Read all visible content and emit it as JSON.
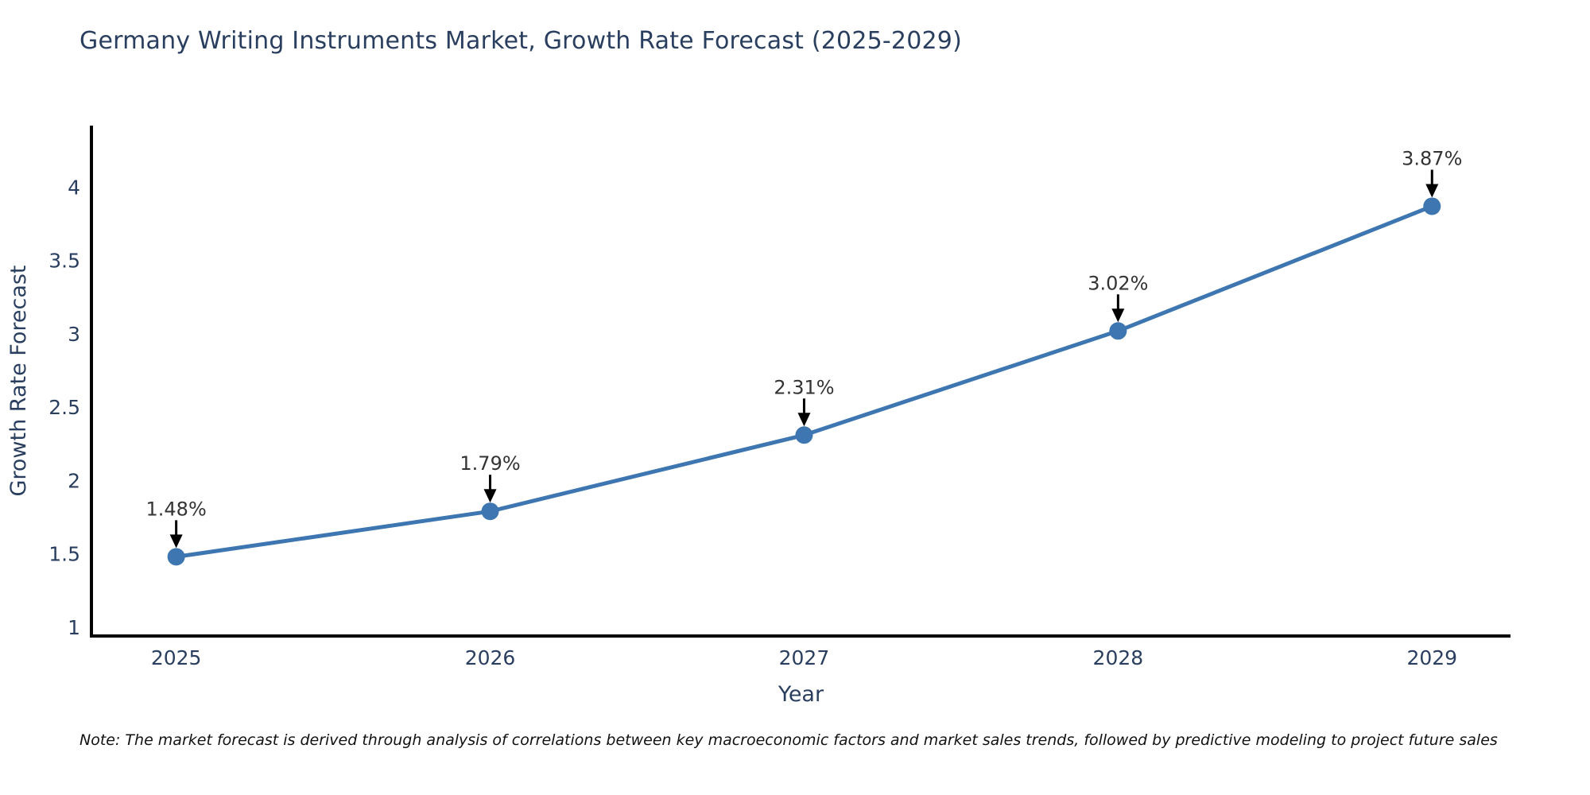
{
  "page": {
    "background": "#ffffff"
  },
  "chart_data": {
    "type": "line",
    "title": "Germany Writing Instruments Market, Growth Rate Forecast (2025-2029)",
    "xlabel": "Year",
    "ylabel": "Growth Rate Forecast",
    "x": [
      2025,
      2026,
      2027,
      2028,
      2029
    ],
    "y": [
      1.48,
      1.79,
      2.31,
      3.02,
      3.87
    ],
    "point_labels": [
      "1.48%",
      "1.79%",
      "2.31%",
      "3.02%",
      "3.87%"
    ],
    "xtick_labels": [
      "2025",
      "2026",
      "2027",
      "2028",
      "2029"
    ],
    "ytick_values": [
      1,
      1.5,
      2,
      2.5,
      3,
      3.5,
      4
    ],
    "ytick_labels": [
      "1",
      "1.5",
      "2",
      "2.5",
      "3",
      "3.5",
      "4"
    ],
    "xlim": [
      2024.73,
      2029.25
    ],
    "ylim": [
      0.94,
      4.42
    ],
    "grid": false,
    "legend": "none",
    "colors": {
      "line": "#3d76b0",
      "marker": "#3d76b0",
      "axis": "#000000",
      "axis_text": "#2a3f5f",
      "annotation_text": "#333333",
      "arrow": "#000000",
      "note_text": "#111111"
    }
  },
  "note": "Note: The market forecast is derived through analysis of correlations between key macroeconomic factors and market sales trends, followed by predictive modeling to project future sales"
}
